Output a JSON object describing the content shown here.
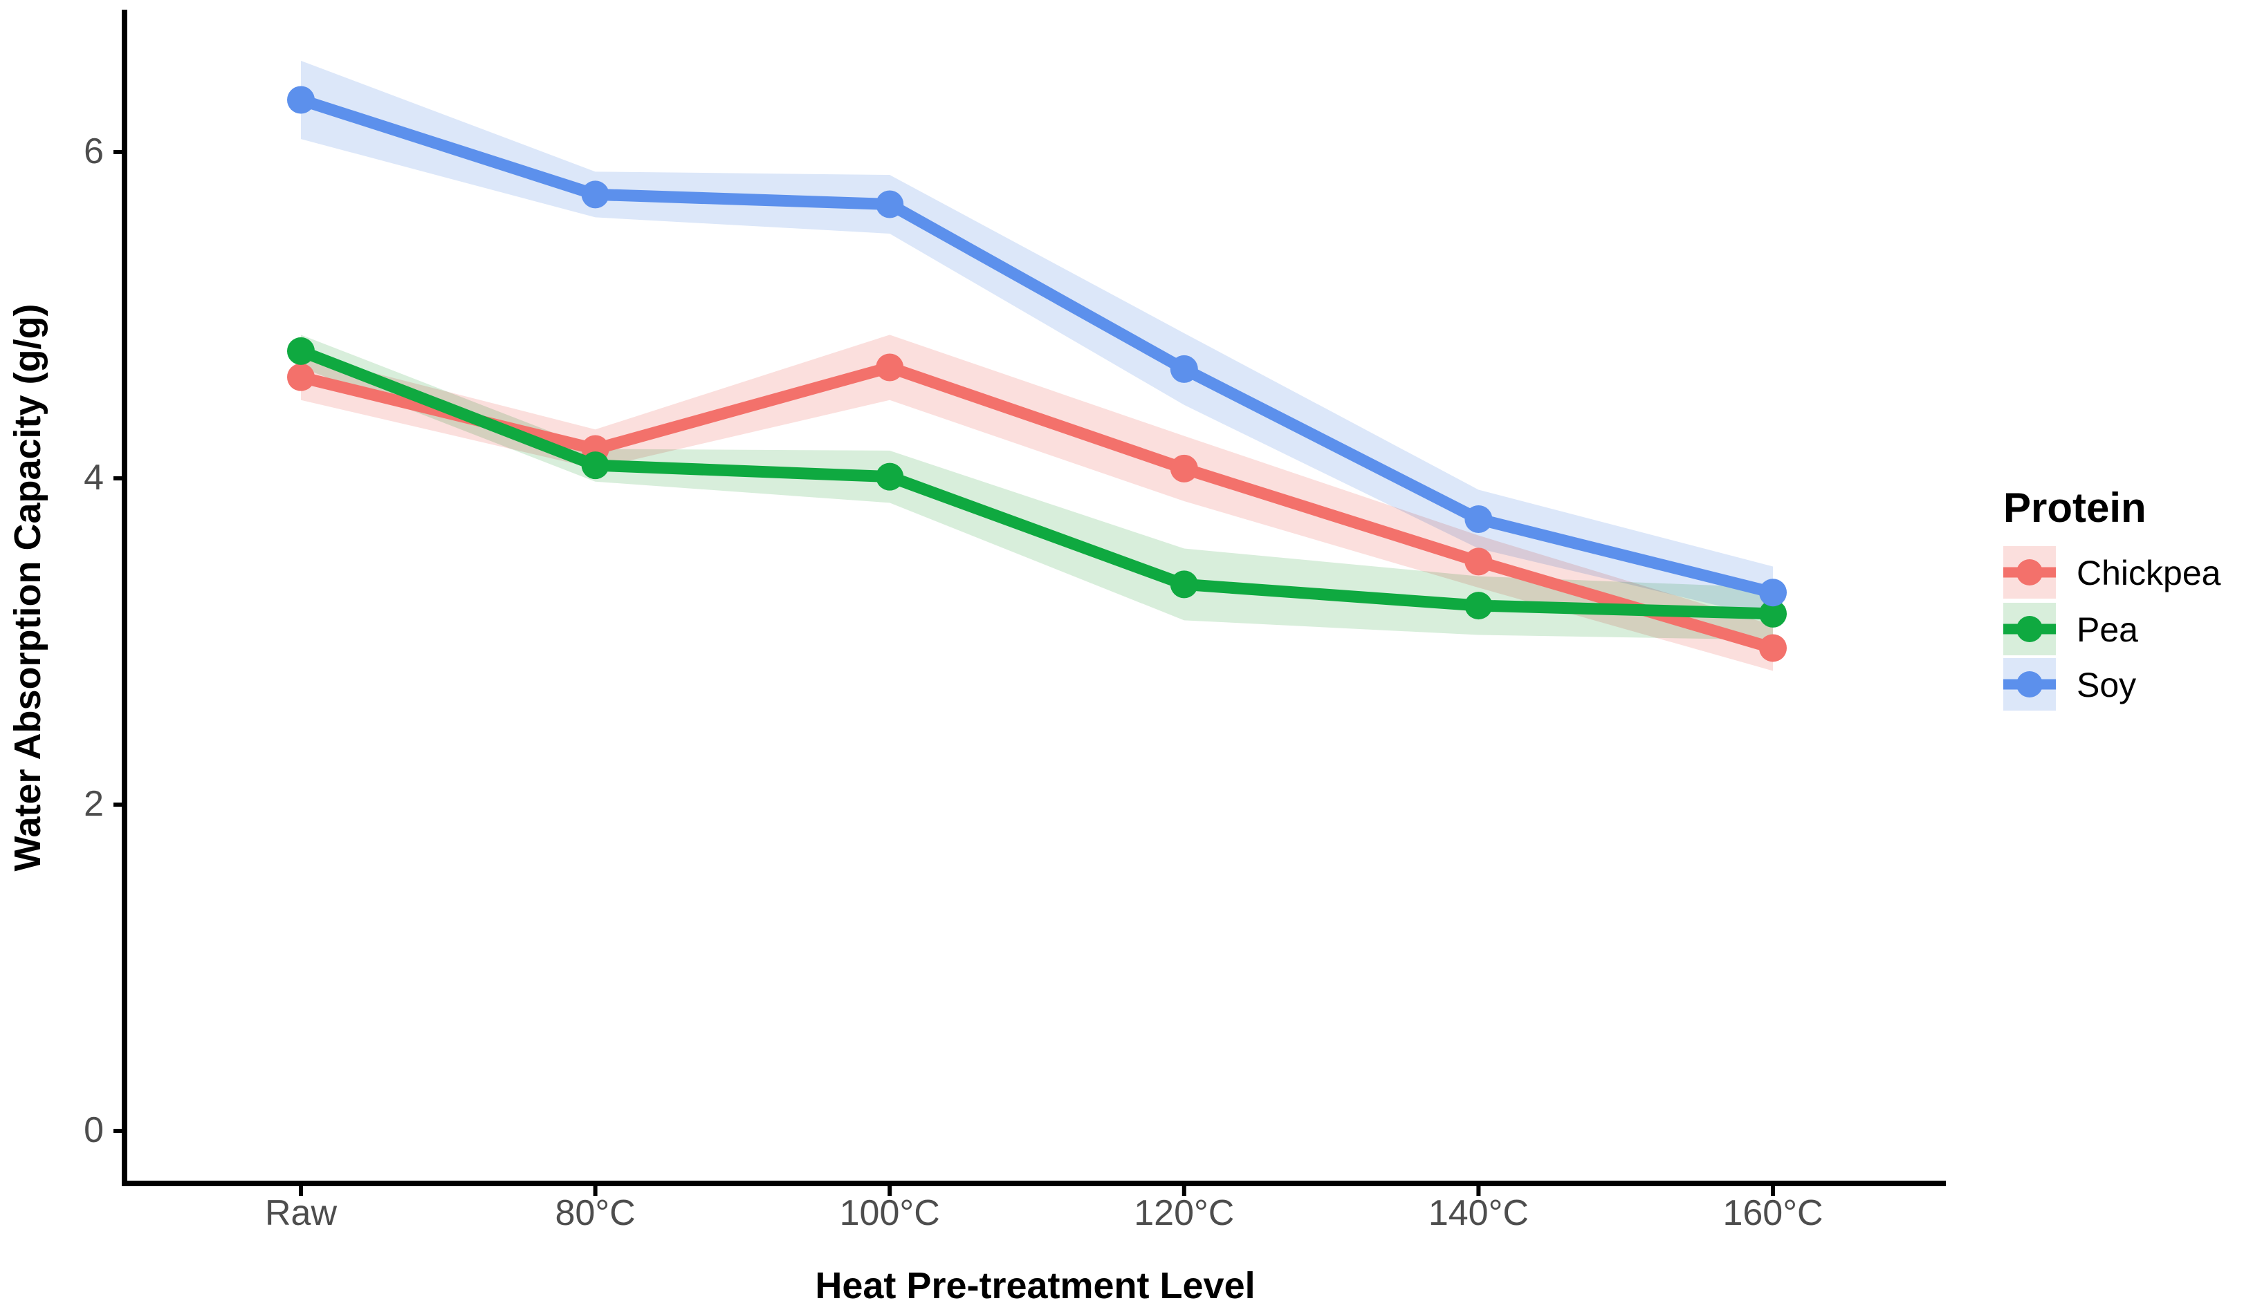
{
  "chart_data": {
    "type": "line",
    "title": "",
    "xlabel": "Heat Pre-treatment Level",
    "ylabel": "Water Absorption Capacity (g/g)",
    "categories": [
      "Raw",
      "80°C",
      "100°C",
      "120°C",
      "140°C",
      "160°C"
    ],
    "y_ticks": [
      0,
      2,
      4,
      6
    ],
    "ylim": [
      -0.33,
      6.9
    ],
    "grid": false,
    "panel_background": "#ffffff",
    "axis_color": "#000000",
    "tick_label_color": "#4D4D4D",
    "title_color": "#000000",
    "legend": {
      "title": "Protein",
      "position": "right",
      "entries": [
        "Chickpea",
        "Pea",
        "Soy"
      ]
    },
    "series": [
      {
        "name": "Chickpea",
        "color": "#F3716B",
        "ribbon_color": "#FBDFDD",
        "values": [
          4.62,
          4.18,
          4.68,
          4.06,
          3.49,
          2.96
        ],
        "ribbon_halfwidth": [
          0.14,
          0.12,
          0.2,
          0.2,
          0.16,
          0.14
        ]
      },
      {
        "name": "Pea",
        "color": "#0FA940",
        "ribbon_color": "#D8EEDB",
        "values": [
          4.78,
          4.08,
          4.01,
          3.35,
          3.22,
          3.17
        ],
        "ribbon_halfwidth": [
          0.1,
          0.1,
          0.16,
          0.22,
          0.18,
          0.16
        ]
      },
      {
        "name": "Soy",
        "color": "#5C90EC",
        "ribbon_color": "#DCE7F9",
        "values": [
          6.32,
          5.74,
          5.68,
          4.67,
          3.75,
          3.3
        ],
        "ribbon_halfwidth": [
          0.24,
          0.14,
          0.18,
          0.22,
          0.18,
          0.16
        ]
      }
    ]
  }
}
